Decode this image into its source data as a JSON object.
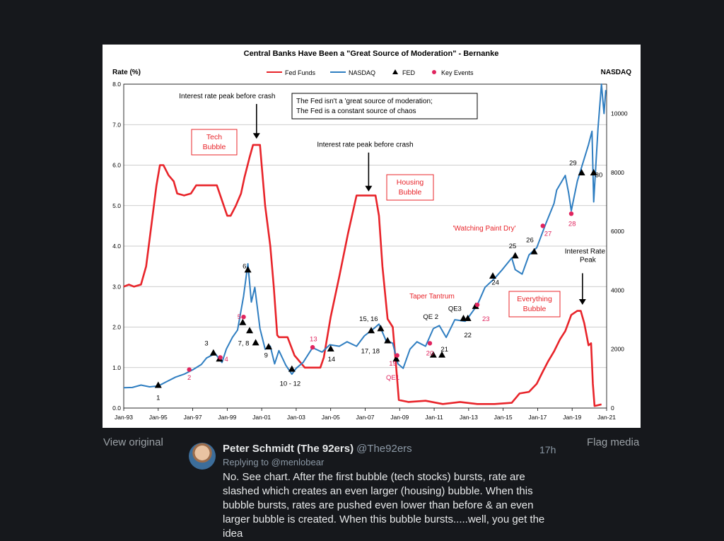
{
  "ui": {
    "view_original": "View original",
    "flag_media": "Flag media"
  },
  "tweet": {
    "display_name": "Peter Schmidt (The 92ers)",
    "handle": "@The92ers",
    "time": "17h",
    "replying_prefix": "Replying to",
    "replying_to": "@menlobear",
    "text": "No. See chart. After the first bubble (tech stocks) bursts, rate are slashed which creates an even larger (housing) bubble. When this bubble bursts, rates are pushed even lower than before & an even larger bubble is created. When this bubble bursts.....well, you get the idea"
  },
  "colors": {
    "fed_funds": "#e8242a",
    "nasdaq": "#2f7ec1",
    "fed_marker": "#000000",
    "key_event": "#e0245e"
  },
  "chart_data": {
    "type": "line",
    "title": "Central Banks Have Been a \"Great Source of Moderation\" - Bernanke",
    "ylabel_left": "Rate (%)",
    "ylabel_right": "NASDAQ",
    "ylim_left": [
      0,
      8
    ],
    "ylim_right": [
      0,
      11000
    ],
    "yticks_left": [
      "0.0",
      "1.0",
      "2.0",
      "3.0",
      "4.0",
      "5.0",
      "6.0",
      "7.0",
      "8.0"
    ],
    "yticks_right": [
      "0",
      "2000",
      "4000",
      "6000",
      "8000",
      "10000"
    ],
    "xlim": [
      1993.0,
      2021.0
    ],
    "xticks": [
      "Jan-93",
      "Jan-95",
      "Jan-97",
      "Jan-99",
      "Jan-01",
      "Jan-03",
      "Jan-05",
      "Jan-07",
      "Jan-09",
      "Jan-11",
      "Jan-13",
      "Jan-15",
      "Jan-17",
      "Jan-19",
      "Jan-21"
    ],
    "grid": true,
    "legend": {
      "position": "top",
      "entries": [
        "Fed Funds",
        "NASDAQ",
        "FED",
        "Key Events"
      ]
    },
    "series": [
      {
        "name": "Fed Funds",
        "axis": "left",
        "points": [
          [
            1993.0,
            3.0
          ],
          [
            1993.3,
            3.05
          ],
          [
            1993.6,
            3.0
          ],
          [
            1994.0,
            3.05
          ],
          [
            1994.3,
            3.5
          ],
          [
            1994.6,
            4.5
          ],
          [
            1994.9,
            5.5
          ],
          [
            1995.1,
            6.0
          ],
          [
            1995.3,
            6.0
          ],
          [
            1995.6,
            5.75
          ],
          [
            1995.9,
            5.6
          ],
          [
            1996.1,
            5.3
          ],
          [
            1996.5,
            5.25
          ],
          [
            1996.9,
            5.3
          ],
          [
            1997.2,
            5.5
          ],
          [
            1997.6,
            5.5
          ],
          [
            1998.0,
            5.5
          ],
          [
            1998.4,
            5.5
          ],
          [
            1998.8,
            5.0
          ],
          [
            1999.0,
            4.75
          ],
          [
            1999.2,
            4.75
          ],
          [
            1999.5,
            5.0
          ],
          [
            1999.8,
            5.3
          ],
          [
            2000.0,
            5.7
          ],
          [
            2000.3,
            6.2
          ],
          [
            2000.5,
            6.5
          ],
          [
            2000.9,
            6.5
          ],
          [
            2001.0,
            6.0
          ],
          [
            2001.2,
            5.0
          ],
          [
            2001.5,
            4.0
          ],
          [
            2001.7,
            3.0
          ],
          [
            2001.9,
            1.8
          ],
          [
            2002.0,
            1.75
          ],
          [
            2002.5,
            1.75
          ],
          [
            2002.9,
            1.3
          ],
          [
            2003.0,
            1.25
          ],
          [
            2003.5,
            1.0
          ],
          [
            2004.0,
            1.0
          ],
          [
            2004.4,
            1.0
          ],
          [
            2004.6,
            1.25
          ],
          [
            2005.0,
            2.25
          ],
          [
            2005.5,
            3.25
          ],
          [
            2006.0,
            4.3
          ],
          [
            2006.5,
            5.25
          ],
          [
            2006.8,
            5.25
          ],
          [
            2007.3,
            5.25
          ],
          [
            2007.6,
            5.25
          ],
          [
            2007.8,
            4.75
          ],
          [
            2008.0,
            3.5
          ],
          [
            2008.3,
            2.2
          ],
          [
            2008.6,
            2.0
          ],
          [
            2008.8,
            1.0
          ],
          [
            2008.95,
            0.2
          ],
          [
            2009.5,
            0.15
          ],
          [
            2010.5,
            0.18
          ],
          [
            2011.5,
            0.1
          ],
          [
            2012.5,
            0.15
          ],
          [
            2013.5,
            0.1
          ],
          [
            2014.5,
            0.1
          ],
          [
            2015.5,
            0.13
          ],
          [
            2015.95,
            0.36
          ],
          [
            2016.5,
            0.4
          ],
          [
            2016.95,
            0.6
          ],
          [
            2017.3,
            0.9
          ],
          [
            2017.6,
            1.15
          ],
          [
            2017.95,
            1.4
          ],
          [
            2018.3,
            1.7
          ],
          [
            2018.6,
            1.9
          ],
          [
            2018.95,
            2.3
          ],
          [
            2019.3,
            2.4
          ],
          [
            2019.5,
            2.4
          ],
          [
            2019.7,
            2.1
          ],
          [
            2019.95,
            1.55
          ],
          [
            2020.1,
            1.6
          ],
          [
            2020.2,
            0.6
          ],
          [
            2020.3,
            0.05
          ],
          [
            2020.7,
            0.09
          ]
        ]
      },
      {
        "name": "NASDAQ",
        "axis": "right",
        "points": [
          [
            1993.0,
            690
          ],
          [
            1993.5,
            700
          ],
          [
            1994.0,
            780
          ],
          [
            1994.5,
            720
          ],
          [
            1995.0,
            750
          ],
          [
            1995.5,
            900
          ],
          [
            1996.0,
            1050
          ],
          [
            1996.5,
            1150
          ],
          [
            1997.0,
            1300
          ],
          [
            1997.5,
            1480
          ],
          [
            1997.8,
            1700
          ],
          [
            1998.3,
            1850
          ],
          [
            1998.7,
            1550
          ],
          [
            1998.95,
            2000
          ],
          [
            1999.3,
            2400
          ],
          [
            1999.6,
            2650
          ],
          [
            1999.95,
            3800
          ],
          [
            2000.2,
            4900
          ],
          [
            2000.4,
            3600
          ],
          [
            2000.6,
            4100
          ],
          [
            2000.9,
            2700
          ],
          [
            2001.2,
            2000
          ],
          [
            2001.5,
            2100
          ],
          [
            2001.75,
            1500
          ],
          [
            2002.0,
            1950
          ],
          [
            2002.4,
            1450
          ],
          [
            2002.75,
            1150
          ],
          [
            2003.0,
            1350
          ],
          [
            2003.4,
            1550
          ],
          [
            2003.95,
            2050
          ],
          [
            2004.5,
            1900
          ],
          [
            2004.95,
            2150
          ],
          [
            2005.5,
            2100
          ],
          [
            2005.95,
            2250
          ],
          [
            2006.5,
            2100
          ],
          [
            2006.95,
            2450
          ],
          [
            2007.5,
            2700
          ],
          [
            2007.8,
            2850
          ],
          [
            2008.2,
            2300
          ],
          [
            2008.6,
            2200
          ],
          [
            2008.9,
            1500
          ],
          [
            2009.2,
            1350
          ],
          [
            2009.6,
            2000
          ],
          [
            2010.0,
            2250
          ],
          [
            2010.5,
            2100
          ],
          [
            2010.95,
            2700
          ],
          [
            2011.3,
            2800
          ],
          [
            2011.7,
            2400
          ],
          [
            2012.2,
            3000
          ],
          [
            2012.8,
            2950
          ],
          [
            2012.95,
            3050
          ],
          [
            2013.5,
            3500
          ],
          [
            2013.95,
            4100
          ],
          [
            2014.5,
            4400
          ],
          [
            2014.95,
            4700
          ],
          [
            2015.5,
            5100
          ],
          [
            2015.7,
            4700
          ],
          [
            2016.1,
            4550
          ],
          [
            2016.5,
            5200
          ],
          [
            2016.95,
            5450
          ],
          [
            2017.5,
            6300
          ],
          [
            2017.95,
            6950
          ],
          [
            2018.1,
            7400
          ],
          [
            2018.6,
            7900
          ],
          [
            2018.8,
            7300
          ],
          [
            2018.95,
            6700
          ],
          [
            2019.3,
            7700
          ],
          [
            2019.95,
            8950
          ],
          [
            2020.15,
            9400
          ],
          [
            2020.25,
            7000
          ],
          [
            2020.5,
            9500
          ],
          [
            2020.7,
            11000
          ],
          [
            2020.85,
            10000
          ],
          [
            2020.95,
            10800
          ]
        ]
      }
    ],
    "fed_markers": [
      {
        "label": "1",
        "x": 1995.0,
        "rate": 0.55
      },
      {
        "label": "3",
        "x": 1998.2,
        "rate": 1.35
      },
      {
        "label": "",
        "x": 1998.55,
        "rate": 1.2
      },
      {
        "label": "6",
        "x": 2000.2,
        "rate": 3.4
      },
      {
        "label": "",
        "x": 1999.9,
        "rate": 2.1
      },
      {
        "label": "7, 8",
        "x": 2000.3,
        "rate": 1.9
      },
      {
        "label": "",
        "x": 2000.65,
        "rate": 1.6
      },
      {
        "label": "9",
        "x": 2001.4,
        "rate": 1.5
      },
      {
        "label": "10 - 12",
        "x": 2002.75,
        "rate": 0.95
      },
      {
        "label": "14",
        "x": 2005.0,
        "rate": 1.45
      },
      {
        "label": "15, 16",
        "x": 2007.35,
        "rate": 1.9
      },
      {
        "label": "",
        "x": 2007.9,
        "rate": 1.95
      },
      {
        "label": "17, 18",
        "x": 2008.3,
        "rate": 1.65
      },
      {
        "label": "",
        "x": 2008.8,
        "rate": 1.2
      },
      {
        "label": "QE 2",
        "x": 2010.95,
        "rate": 1.3
      },
      {
        "label": "21",
        "x": 2011.45,
        "rate": 1.3
      },
      {
        "label": "QE3",
        "x": 2012.7,
        "rate": 2.2
      },
      {
        "label": "22",
        "x": 2012.95,
        "rate": 2.2
      },
      {
        "label": "",
        "x": 2013.4,
        "rate": 2.5
      },
      {
        "label": "24",
        "x": 2014.4,
        "rate": 3.25
      },
      {
        "label": "25",
        "x": 2015.7,
        "rate": 3.75
      },
      {
        "label": "26",
        "x": 2016.8,
        "rate": 3.85
      },
      {
        "label": "29",
        "x": 2019.55,
        "rate": 5.8
      },
      {
        "label": "30",
        "x": 2020.25,
        "rate": 5.8
      }
    ],
    "key_events": [
      {
        "label": "2",
        "x": 1996.8,
        "rate": 0.95
      },
      {
        "label": "4",
        "x": 1998.6,
        "rate": 1.25
      },
      {
        "label": "5",
        "x": 1999.95,
        "rate": 2.25
      },
      {
        "label": "13",
        "x": 2003.95,
        "rate": 1.5
      },
      {
        "label": "19",
        "x": 2008.85,
        "rate": 1.3
      },
      {
        "label": "QE1",
        "x": 2008.9,
        "rate": 1.3
      },
      {
        "label": "20",
        "x": 2010.75,
        "rate": 1.6
      },
      {
        "label": "23",
        "x": 2013.5,
        "rate": 2.55
      },
      {
        "label": "27",
        "x": 2017.3,
        "rate": 4.5
      },
      {
        "label": "28",
        "x": 2018.95,
        "rate": 4.8
      }
    ],
    "annotations": [
      {
        "text": "Interest rate peak before crash",
        "x": 1999.8,
        "rate": 7.65,
        "arrow_to": [
          2000.7,
          6.65
        ]
      },
      {
        "text": "Interest rate peak before crash",
        "x": 2007.2,
        "rate": 6.45,
        "arrow_to": [
          2007.2,
          5.35
        ]
      },
      {
        "text": "Interest Rate Peak",
        "x": 2019.5,
        "rate": 3.4,
        "arrow_to": [
          2019.6,
          2.55
        ]
      }
    ],
    "callout_text": [
      "The Fed isn't a 'great source of moderation;",
      "The Fed is a constant source of chaos"
    ],
    "boxed_labels": [
      {
        "text": [
          "Tech",
          "Bubble"
        ]
      },
      {
        "text": [
          "Housing",
          "Bubble"
        ]
      },
      {
        "text": [
          "Everything",
          "Bubble"
        ]
      }
    ],
    "red_labels": [
      "'Watching Paint Dry'",
      "Taper Tantrum"
    ]
  }
}
